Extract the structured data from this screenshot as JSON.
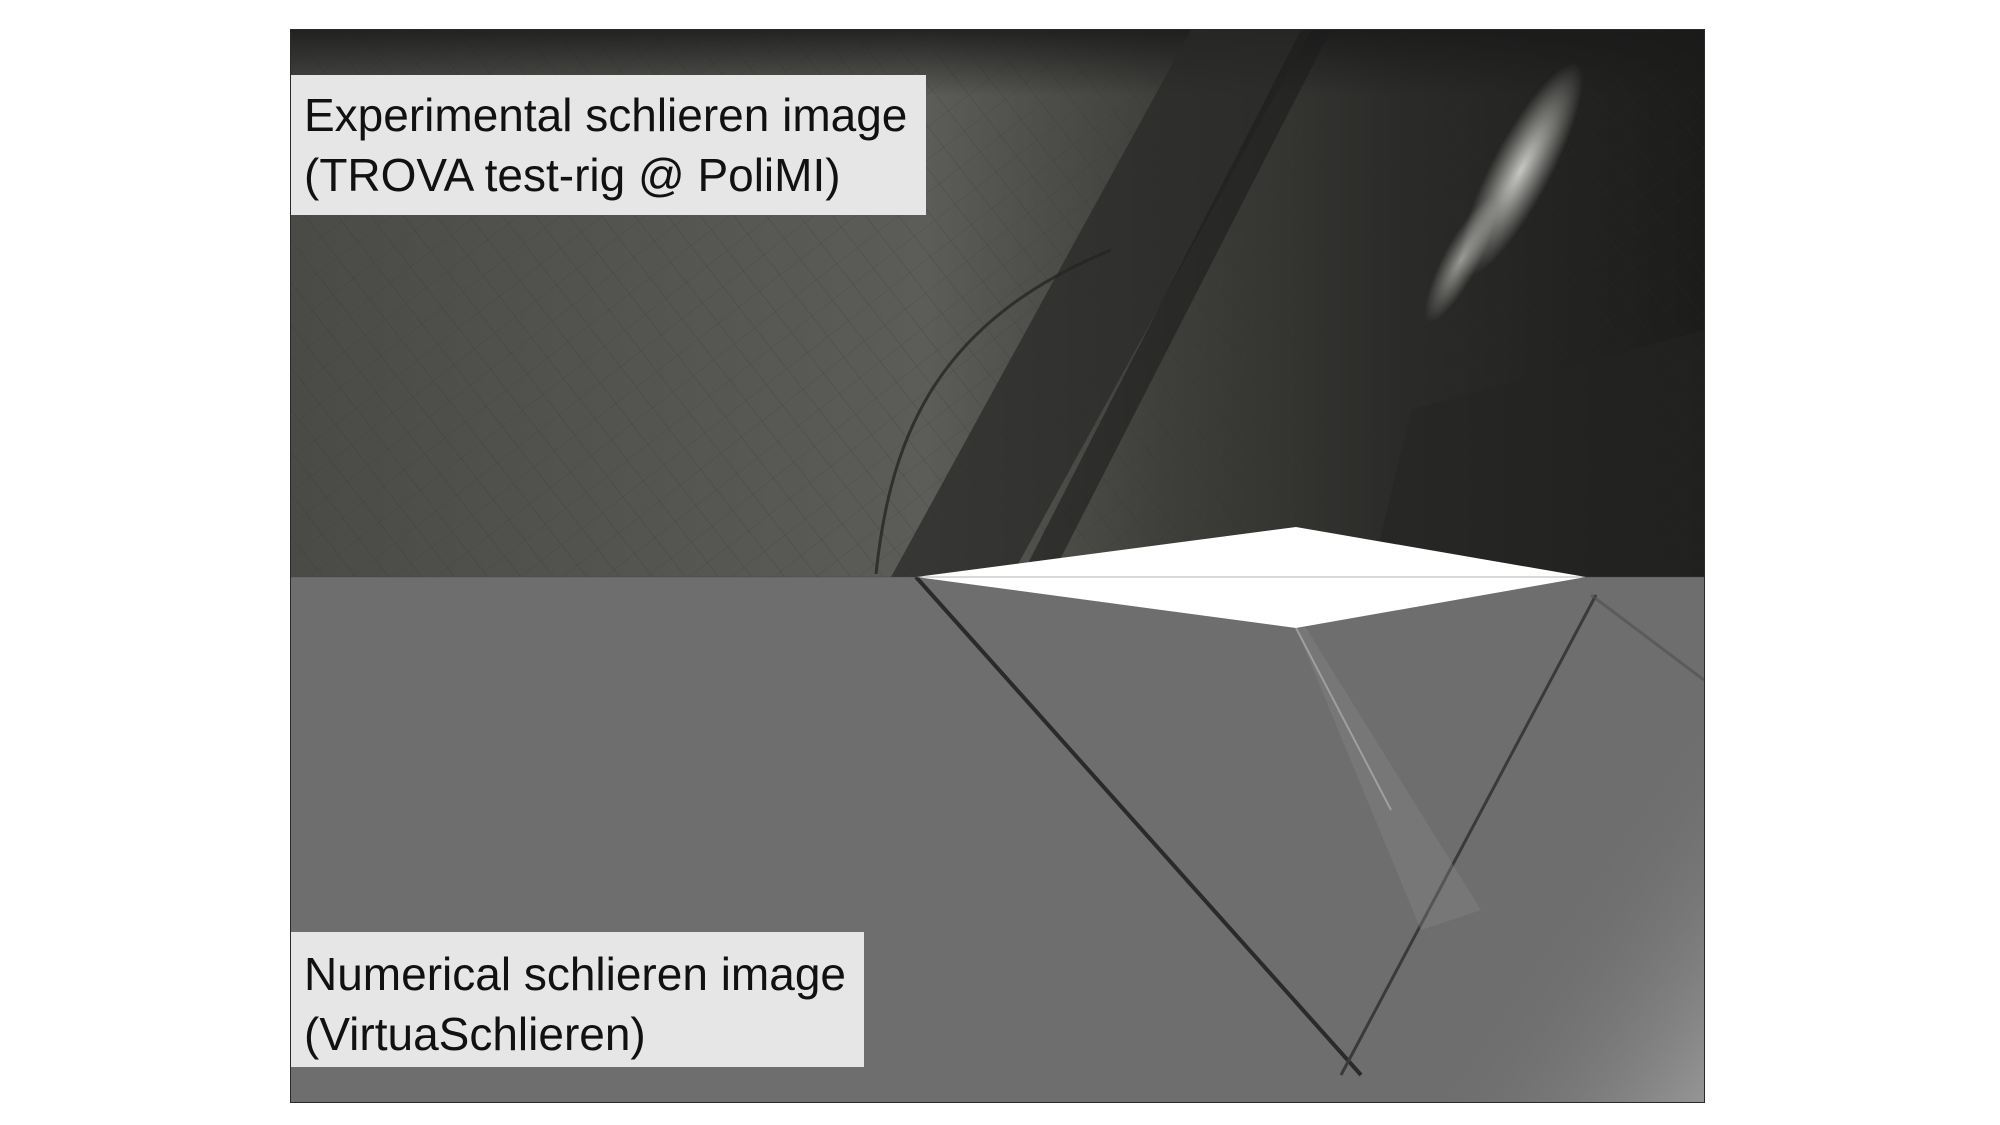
{
  "top_caption": {
    "line1": "Experimental schlieren image",
    "line2": "(TROVA test-rig @ PoliMI)"
  },
  "bottom_caption": {
    "line1": "Numerical schlieren image",
    "line2": "(VirtuaSchlieren)"
  },
  "colors": {
    "experimental_dark": "#1b1b1b",
    "experimental_mid": "#5a5a56",
    "numerical_gray": "#6e6e6e",
    "airfoil": "#ffffff",
    "caption_bg": "#e6e6e6"
  }
}
